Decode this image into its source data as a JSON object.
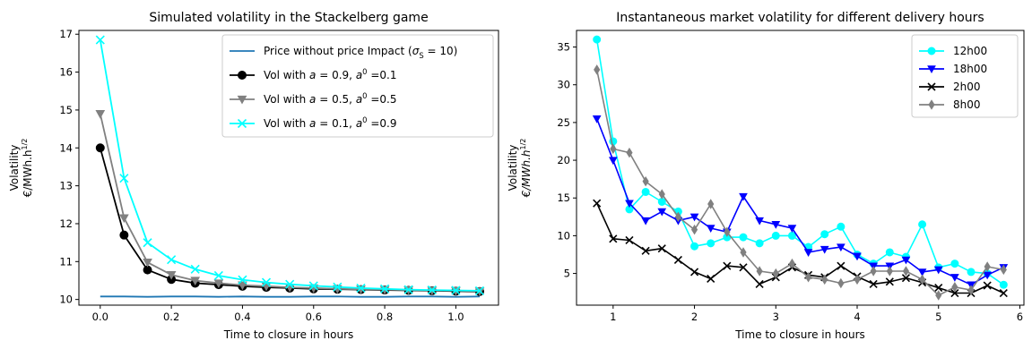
{
  "chart_data": [
    {
      "type": "line",
      "title": "Simulated volatility in the Stackelberg game",
      "xlabel": "Time to closure in hours",
      "ylabel": [
        "Volatility",
        "€/MWh.h"
      ],
      "ylabel_sup": "1/2",
      "xlim": [
        -0.06,
        1.12
      ],
      "ylim": [
        9.85,
        17.1
      ],
      "xticks": [
        0.0,
        0.2,
        0.4,
        0.6,
        0.8,
        1.0
      ],
      "xtick_labels": [
        "0.0",
        "0.2",
        "0.4",
        "0.6",
        "0.8",
        "1.0"
      ],
      "yticks": [
        10,
        11,
        12,
        13,
        14,
        15,
        16,
        17
      ],
      "ytick_labels": [
        "10",
        "11",
        "12",
        "13",
        "14",
        "15",
        "16",
        "17"
      ],
      "legend_position": "top-right",
      "series": [
        {
          "name": "Price without price Impact (σ_S = 10)",
          "legend_parts": [
            {
              "t": "Price without price Impact ("
            },
            {
              "t": "σ",
              "i": true
            },
            {
              "t": "S",
              "sub": true
            },
            {
              "t": " = 10)"
            }
          ],
          "color": "#1f77b4",
          "marker": "none",
          "x": [
            0.0,
            0.067,
            0.133,
            0.2,
            0.267,
            0.333,
            0.4,
            0.467,
            0.533,
            0.6,
            0.667,
            0.733,
            0.8,
            0.867,
            0.933,
            1.0,
            1.067
          ],
          "y": [
            10.08,
            10.08,
            10.07,
            10.08,
            10.08,
            10.07,
            10.08,
            10.07,
            10.07,
            10.08,
            10.08,
            10.07,
            10.07,
            10.08,
            10.08,
            10.07,
            10.08
          ]
        },
        {
          "name": "Vol with a = 0.9, a⁰ = 0.1",
          "legend_parts": [
            {
              "t": "Vol with "
            },
            {
              "t": "a",
              "i": true
            },
            {
              "t": " = 0.9, "
            },
            {
              "t": "a",
              "i": true
            },
            {
              "t": "0",
              "sup": true
            },
            {
              "t": " =0.1"
            }
          ],
          "color": "#000000",
          "marker": "circle",
          "x": [
            0.0,
            0.067,
            0.133,
            0.2,
            0.267,
            0.333,
            0.4,
            0.467,
            0.533,
            0.6,
            0.667,
            0.733,
            0.8,
            0.867,
            0.933,
            1.0,
            1.067
          ],
          "y": [
            14.0,
            11.7,
            10.78,
            10.53,
            10.43,
            10.39,
            10.35,
            10.32,
            10.3,
            10.28,
            10.27,
            10.26,
            10.25,
            10.24,
            10.23,
            10.22,
            10.21
          ]
        },
        {
          "name": "Vol with a = 0.5, a⁰ = 0.5",
          "legend_parts": [
            {
              "t": "Vol with "
            },
            {
              "t": "a",
              "i": true
            },
            {
              "t": " = 0.5, "
            },
            {
              "t": "a",
              "i": true
            },
            {
              "t": "0",
              "sup": true
            },
            {
              "t": " =0.5"
            }
          ],
          "color": "#808080",
          "marker": "triangle-down",
          "x": [
            0.0,
            0.067,
            0.133,
            0.2,
            0.267,
            0.333,
            0.4,
            0.467,
            0.533,
            0.6,
            0.667,
            0.733,
            0.8,
            0.867,
            0.933,
            1.0,
            1.067
          ],
          "y": [
            14.9,
            12.15,
            10.98,
            10.65,
            10.5,
            10.43,
            10.38,
            10.35,
            10.32,
            10.3,
            10.28,
            10.27,
            10.26,
            10.25,
            10.24,
            10.23,
            10.22
          ]
        },
        {
          "name": "Vol with a = 0.1, a⁰ = 0.9",
          "legend_parts": [
            {
              "t": "Vol with "
            },
            {
              "t": "a",
              "i": true
            },
            {
              "t": " = 0.1, "
            },
            {
              "t": "a",
              "i": true
            },
            {
              "t": "0",
              "sup": true
            },
            {
              "t": " =0.9"
            }
          ],
          "color": "#00ffff",
          "marker": "x",
          "x": [
            0.0,
            0.067,
            0.133,
            0.2,
            0.267,
            0.333,
            0.4,
            0.467,
            0.533,
            0.6,
            0.667,
            0.733,
            0.8,
            0.867,
            0.933,
            1.0,
            1.067
          ],
          "y": [
            16.85,
            13.2,
            11.5,
            11.05,
            10.8,
            10.63,
            10.52,
            10.45,
            10.4,
            10.36,
            10.33,
            10.3,
            10.28,
            10.26,
            10.25,
            10.24,
            10.23
          ]
        }
      ]
    },
    {
      "type": "line",
      "title": "Instantaneous market volatility for different delivery hours",
      "xlabel": "Time to closure in hours",
      "ylabel": [
        "Volatility",
        "€/MWh.h"
      ],
      "ylabel_sup": "1/2",
      "xlim": [
        0.55,
        6.05
      ],
      "ylim": [
        0.8,
        37.2
      ],
      "xticks": [
        1,
        2,
        3,
        4,
        5,
        6
      ],
      "xtick_labels": [
        "1",
        "2",
        "3",
        "4",
        "5",
        "6"
      ],
      "yticks": [
        5,
        10,
        15,
        20,
        25,
        30,
        35
      ],
      "ytick_labels": [
        "5",
        "10",
        "15",
        "20",
        "25",
        "30",
        "35"
      ],
      "legend_position": "top-right",
      "series": [
        {
          "name": "12h00",
          "legend_parts": [
            {
              "t": "12h00"
            }
          ],
          "color": "#00ffff",
          "marker": "circle",
          "x": [
            0.8,
            1.0,
            1.2,
            1.4,
            1.6,
            1.8,
            2.0,
            2.2,
            2.4,
            2.6,
            2.8,
            3.0,
            3.2,
            3.4,
            3.6,
            3.8,
            4.0,
            4.2,
            4.4,
            4.6,
            4.8,
            5.0,
            5.2,
            5.4,
            5.6,
            5.8
          ],
          "y": [
            36,
            22.5,
            13.5,
            15.8,
            14.5,
            13.2,
            8.6,
            9.0,
            9.8,
            9.8,
            9.0,
            10.0,
            10.0,
            8.5,
            10.2,
            11.2,
            7.5,
            6.3,
            7.8,
            7.2,
            11.5,
            5.8,
            6.3,
            5.2,
            5.0,
            3.5
          ]
        },
        {
          "name": "18h00",
          "legend_parts": [
            {
              "t": "18h00"
            }
          ],
          "color": "#0000ff",
          "marker": "triangle-down",
          "x": [
            0.8,
            1.0,
            1.2,
            1.4,
            1.6,
            1.8,
            2.0,
            2.2,
            2.4,
            2.6,
            2.8,
            3.0,
            3.2,
            3.4,
            3.6,
            3.8,
            4.0,
            4.2,
            4.4,
            4.6,
            4.8,
            5.0,
            5.2,
            5.4,
            5.6,
            5.8
          ],
          "y": [
            25.5,
            20.0,
            14.3,
            12.0,
            13.2,
            12.0,
            12.5,
            11.0,
            10.5,
            15.2,
            12.0,
            11.5,
            11.0,
            7.8,
            8.2,
            8.5,
            7.3,
            6.0,
            6.0,
            6.8,
            5.2,
            5.5,
            4.5,
            3.5,
            4.8,
            5.8
          ]
        },
        {
          "name": "2h00",
          "legend_parts": [
            {
              "t": "2h00"
            }
          ],
          "color": "#000000",
          "marker": "x",
          "x": [
            0.8,
            1.0,
            1.2,
            1.4,
            1.6,
            1.8,
            2.0,
            2.2,
            2.4,
            2.6,
            2.8,
            3.0,
            3.2,
            3.4,
            3.6,
            3.8,
            4.0,
            4.2,
            4.4,
            4.6,
            4.8,
            5.0,
            5.2,
            5.4,
            5.6,
            5.8
          ],
          "y": [
            14.3,
            9.6,
            9.4,
            8.0,
            8.3,
            6.8,
            5.2,
            4.3,
            6.0,
            5.8,
            3.6,
            4.5,
            5.8,
            4.8,
            4.5,
            6.0,
            4.6,
            3.6,
            3.9,
            4.4,
            3.8,
            3.1,
            2.4,
            2.4,
            3.4,
            2.4
          ]
        },
        {
          "name": "8h00",
          "legend_parts": [
            {
              "t": "8h00"
            }
          ],
          "color": "#808080",
          "marker": "diamond",
          "x": [
            0.8,
            1.0,
            1.2,
            1.4,
            1.6,
            1.8,
            2.0,
            2.2,
            2.4,
            2.6,
            2.8,
            3.0,
            3.2,
            3.4,
            3.6,
            3.8,
            4.0,
            4.2,
            4.4,
            4.6,
            4.8,
            5.0,
            5.2,
            5.4,
            5.6,
            5.8
          ],
          "y": [
            32.0,
            21.5,
            21.0,
            17.2,
            15.5,
            12.5,
            10.8,
            14.2,
            10.5,
            7.8,
            5.3,
            5.0,
            6.3,
            4.5,
            4.2,
            3.7,
            4.2,
            5.3,
            5.3,
            5.3,
            4.2,
            2.1,
            3.2,
            2.8,
            5.9,
            5.5
          ]
        }
      ]
    }
  ]
}
